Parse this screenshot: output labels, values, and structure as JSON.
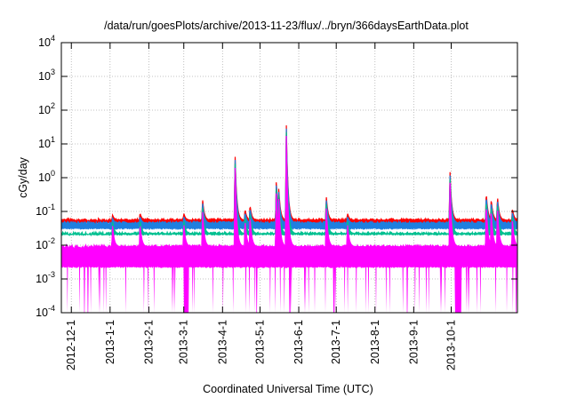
{
  "chart_data": {
    "type": "line",
    "title": "/data/run/goesPlots/archive/2013-11-23/flux/../bryn/366daysEarthData.plot",
    "xlabel": "Coordinated Universal Time (UTC)",
    "ylabel": "cGy/day",
    "yscale": "log",
    "ylim": [
      0.0001,
      10000
    ],
    "y_ticks": [
      {
        "base": "10",
        "exp": "-4"
      },
      {
        "base": "10",
        "exp": "-3"
      },
      {
        "base": "10",
        "exp": "-2"
      },
      {
        "base": "10",
        "exp": "-1"
      },
      {
        "base": "10",
        "exp": "0"
      },
      {
        "base": "10",
        "exp": "1"
      },
      {
        "base": "10",
        "exp": "2"
      },
      {
        "base": "10",
        "exp": "3"
      },
      {
        "base": "10",
        "exp": "4"
      }
    ],
    "xlim": [
      "2012-11-23",
      "2013-11-23"
    ],
    "x_ticks": [
      "2012-12-1",
      "2013-1-1",
      "2013-2-1",
      "2013-3-1",
      "2013-4-1",
      "2013-5-1",
      "2013-6-1",
      "2013-7-1",
      "2013-8-1",
      "2013-9-1",
      "2013-10-1"
    ],
    "grid": true,
    "series": [
      {
        "color": "#ff0000",
        "baseline": 0.055,
        "floor": 0.045
      },
      {
        "color": "#1f7fdf",
        "baseline": 0.045,
        "floor": 0.03
      },
      {
        "color": "#00c090",
        "baseline": 0.022,
        "floor": 0.02
      },
      {
        "color": "#ff00ff",
        "baseline": 0.009,
        "floor": 0.0022
      }
    ],
    "events": [
      {
        "date": "2013-01-03",
        "peak": 0.08
      },
      {
        "date": "2013-01-25",
        "peak": 0.09
      },
      {
        "date": "2013-03-01",
        "peak": 0.09
      },
      {
        "date": "2013-03-16",
        "peak": 0.25
      },
      {
        "date": "2013-04-11",
        "peak": 6.0
      },
      {
        "date": "2013-04-19",
        "peak": 0.12
      },
      {
        "date": "2013-04-23",
        "peak": 0.16
      },
      {
        "date": "2013-05-14",
        "peak": 0.9
      },
      {
        "date": "2013-05-16",
        "peak": 0.5
      },
      {
        "date": "2013-05-22",
        "peak": 50
      },
      {
        "date": "2013-06-23",
        "peak": 0.3
      },
      {
        "date": "2013-07-10",
        "peak": 0.09
      },
      {
        "date": "2013-09-30",
        "peak": 1.7
      },
      {
        "date": "2013-10-29",
        "peak": 0.4
      },
      {
        "date": "2013-11-02",
        "peak": 0.25
      },
      {
        "date": "2013-11-07",
        "peak": 0.3
      },
      {
        "date": "2013-11-19",
        "peak": 0.12
      }
    ],
    "dropouts": [
      {
        "from": "2013-03-01",
        "to": "2013-03-05"
      },
      {
        "from": "2013-10-04",
        "to": "2013-10-09"
      }
    ]
  }
}
